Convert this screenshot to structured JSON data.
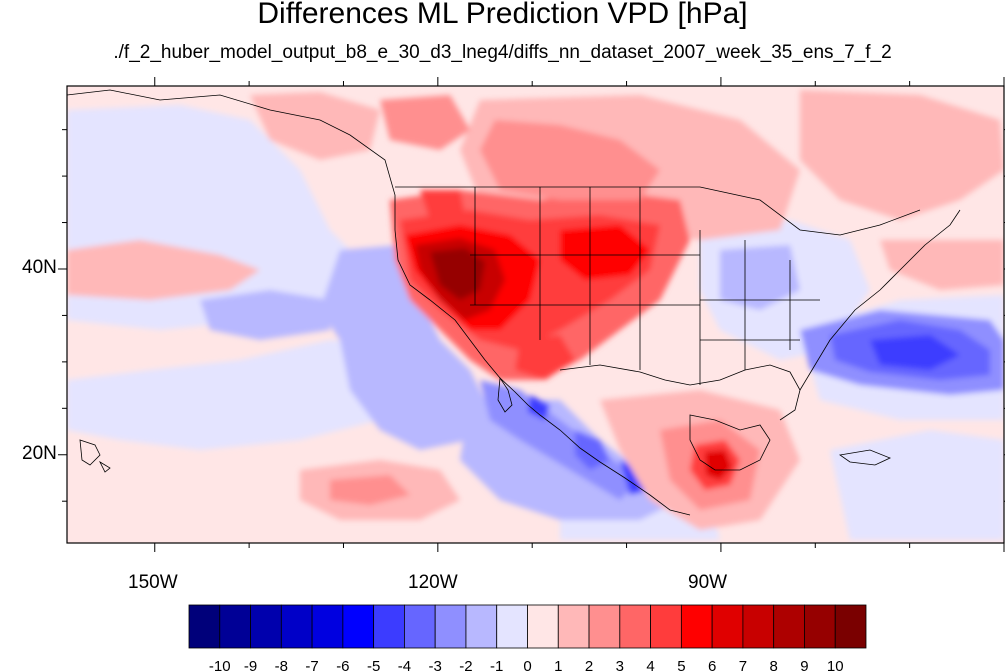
{
  "title": "Differences ML Prediction VPD [hPa]",
  "subtitle": "./f_2_huber_model_output_b8_e_30_d3_lneg4/diffs_nn_dataset_2007_week_35_ens_7_f_2",
  "map": {
    "x_ticks": [
      {
        "lon": -150,
        "label": "150W"
      },
      {
        "lon": -120,
        "label": "120W"
      },
      {
        "lon": -90,
        "label": "90W"
      }
    ],
    "y_ticks": [
      {
        "lat": 40,
        "label": "40N"
      },
      {
        "lat": 20,
        "label": "20N"
      }
    ],
    "lon_range": [
      -159.3,
      -60.0
    ],
    "lat_range": [
      10.5,
      59.7
    ]
  },
  "colorbar": {
    "labels": [
      "-10",
      "-9",
      "-8",
      "-7",
      "-6",
      "-5",
      "-4",
      "-3",
      "-2",
      "-1",
      "0",
      "1",
      "2",
      "3",
      "4",
      "5",
      "6",
      "7",
      "8",
      "9",
      "10"
    ],
    "colors": [
      "#00007a",
      "#000096",
      "#0000ad",
      "#0000c8",
      "#0000e0",
      "#0000ff",
      "#3c3cff",
      "#6666ff",
      "#8f8fff",
      "#b8b8ff",
      "#e4e4ff",
      "#ffe6e6",
      "#ffb8b8",
      "#ff8f8f",
      "#ff6666",
      "#ff3c3c",
      "#ff0000",
      "#e00000",
      "#c80000",
      "#ad0000",
      "#960000",
      "#7a0000"
    ]
  }
}
